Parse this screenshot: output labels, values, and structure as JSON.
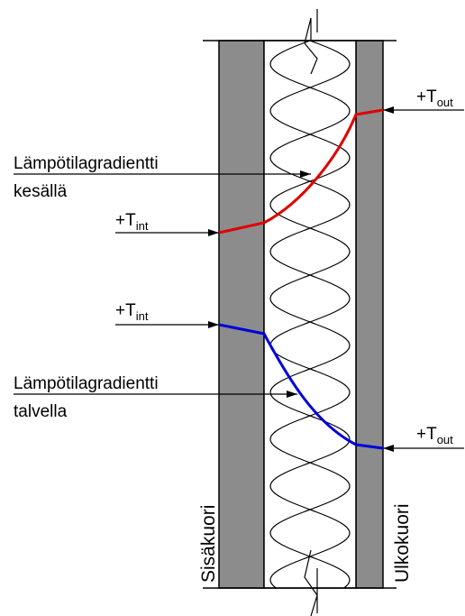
{
  "summer": {
    "label": [
      "Lämpötilagradientti",
      "kesällä"
    ],
    "t_int": {
      "symbol": "+T",
      "sub": "int"
    },
    "t_out": {
      "symbol": "+T",
      "sub": "out"
    }
  },
  "winter": {
    "label": [
      "Lämpötilagradientti",
      "talvella"
    ],
    "t_int": {
      "symbol": "+T",
      "sub": "int"
    },
    "t_out": {
      "symbol": "+T",
      "sub": "out"
    }
  },
  "inner_shell": "Sisäkuori",
  "outer_shell": "Ulkokuori"
}
